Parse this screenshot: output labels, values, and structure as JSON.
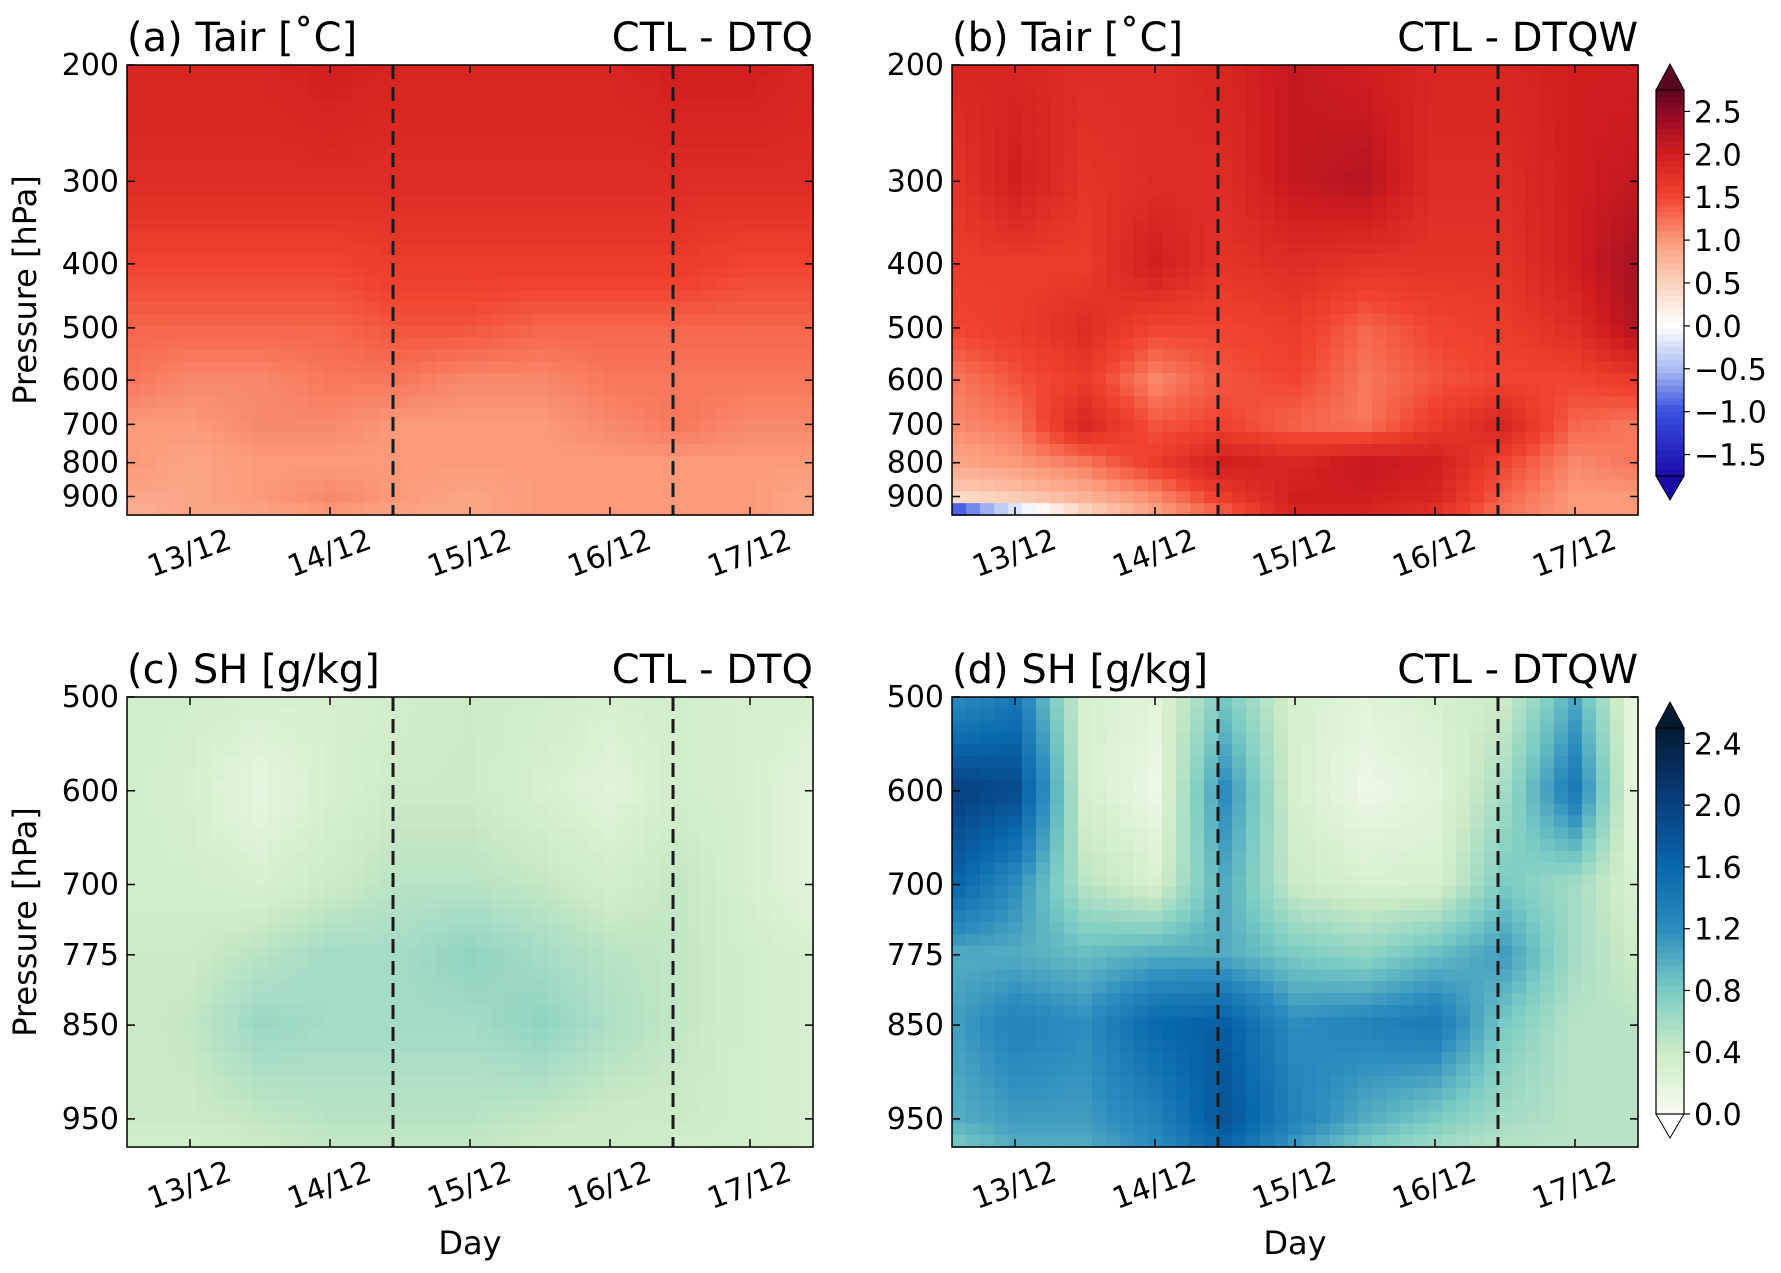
{
  "figure": {
    "xlabel": "Day"
  },
  "colorbars": {
    "temperature": {
      "ticks": [
        "2.5",
        "2.0",
        "1.5",
        "1.0",
        "0.5",
        "0.0",
        "−0.5",
        "−1.0",
        "−1.5"
      ],
      "vmin": -1.75,
      "vmax": 2.75,
      "stops": [
        {
          "v": -1.75,
          "color": "#1b0ca8"
        },
        {
          "v": -1.0,
          "color": "#3a4fe0"
        },
        {
          "v": -0.5,
          "color": "#a9bdf3"
        },
        {
          "v": 0.0,
          "color": "#ffffff"
        },
        {
          "v": 0.5,
          "color": "#fcd3bd"
        },
        {
          "v": 1.0,
          "color": "#fb9a7a"
        },
        {
          "v": 1.5,
          "color": "#f1432f"
        },
        {
          "v": 2.0,
          "color": "#d21d1f"
        },
        {
          "v": 2.5,
          "color": "#8e0a26"
        },
        {
          "v": 2.75,
          "color": "#5b0520"
        }
      ]
    },
    "humidity": {
      "ticks": [
        "2.4",
        "2.0",
        "1.6",
        "1.2",
        "0.8",
        "0.4",
        "0.0"
      ],
      "vmin": 0.0,
      "vmax": 2.5,
      "stops": [
        {
          "v": 0.0,
          "color": "#f7fcf0"
        },
        {
          "v": 0.4,
          "color": "#ccebc5"
        },
        {
          "v": 0.8,
          "color": "#7bccc4"
        },
        {
          "v": 1.2,
          "color": "#2b8cbe"
        },
        {
          "v": 1.6,
          "color": "#0868ac"
        },
        {
          "v": 2.0,
          "color": "#084081"
        },
        {
          "v": 2.5,
          "color": "#041a33"
        }
      ]
    }
  },
  "chart_data": [
    {
      "type": "heatmap",
      "panel_label": "(a) Tair [$^\\circ$C]",
      "title": "(a) Tair [˚C]",
      "experiment": "CTL - DTQ",
      "ylabel": "Pressure [hPa]",
      "xlabel": "",
      "x_tick_labels": [
        "13/12",
        "14/12",
        "15/12",
        "16/12",
        "17/12"
      ],
      "y_ticks": [
        200,
        300,
        400,
        500,
        600,
        700,
        800,
        900
      ],
      "y_range_hPa": [
        200,
        960
      ],
      "x_range_days": [
        12.55,
        17.45
      ],
      "dashed_lines_days": [
        14.45,
        16.45
      ],
      "colorbar": "temperature",
      "levels_hPa": [
        200,
        300,
        400,
        500,
        600,
        700,
        800,
        900,
        960
      ],
      "days": [
        12.6,
        13.0,
        13.5,
        14.0,
        14.5,
        15.0,
        15.5,
        16.0,
        16.5,
        17.0,
        17.4
      ],
      "values": [
        [
          1.9,
          1.9,
          1.9,
          2.0,
          1.9,
          1.9,
          1.9,
          1.9,
          2.0,
          2.0,
          1.9
        ],
        [
          1.8,
          1.8,
          1.8,
          1.8,
          1.8,
          1.8,
          1.8,
          1.8,
          1.8,
          1.8,
          1.8
        ],
        [
          1.5,
          1.5,
          1.5,
          1.5,
          1.6,
          1.6,
          1.6,
          1.6,
          1.6,
          1.5,
          1.5
        ],
        [
          1.3,
          1.3,
          1.3,
          1.3,
          1.4,
          1.4,
          1.3,
          1.3,
          1.3,
          1.3,
          1.3
        ],
        [
          1.2,
          1.1,
          1.1,
          1.2,
          1.2,
          1.1,
          1.1,
          1.2,
          1.2,
          1.2,
          1.2
        ],
        [
          1.0,
          1.0,
          1.1,
          1.1,
          1.0,
          1.0,
          1.0,
          1.1,
          1.2,
          1.1,
          1.1
        ],
        [
          1.0,
          0.9,
          1.0,
          1.0,
          1.0,
          1.0,
          1.0,
          1.0,
          1.0,
          1.0,
          1.0
        ],
        [
          0.9,
          0.9,
          1.0,
          1.1,
          1.0,
          0.9,
          1.0,
          1.0,
          1.0,
          1.0,
          0.9
        ],
        [
          0.8,
          0.9,
          0.9,
          1.0,
          0.9,
          0.9,
          1.0,
          1.0,
          1.0,
          1.0,
          0.9
        ]
      ]
    },
    {
      "type": "heatmap",
      "title": "(b) Tair [˚C]",
      "experiment": "CTL - DTQW",
      "ylabel": "",
      "xlabel": "",
      "x_tick_labels": [
        "13/12",
        "14/12",
        "15/12",
        "16/12",
        "17/12"
      ],
      "y_ticks": [
        200,
        300,
        400,
        500,
        600,
        700,
        800,
        900
      ],
      "y_range_hPa": [
        200,
        960
      ],
      "x_range_days": [
        12.55,
        17.45
      ],
      "dashed_lines_days": [
        14.45,
        16.45
      ],
      "colorbar": "temperature",
      "levels_hPa": [
        200,
        300,
        400,
        500,
        600,
        700,
        800,
        900,
        960
      ],
      "days": [
        12.6,
        13.0,
        13.5,
        14.0,
        14.5,
        15.0,
        15.5,
        16.0,
        16.5,
        17.0,
        17.4
      ],
      "values": [
        [
          1.9,
          1.9,
          1.8,
          1.8,
          1.9,
          2.1,
          2.0,
          1.9,
          1.9,
          2.0,
          2.0
        ],
        [
          1.7,
          2.0,
          1.7,
          1.8,
          1.8,
          2.1,
          2.2,
          1.8,
          1.8,
          2.0,
          2.1
        ],
        [
          1.6,
          1.6,
          1.6,
          2.0,
          1.7,
          1.8,
          1.7,
          1.7,
          1.7,
          2.0,
          2.3
        ],
        [
          1.5,
          1.6,
          1.8,
          1.5,
          1.5,
          1.6,
          1.3,
          1.5,
          1.6,
          1.8,
          2.2
        ],
        [
          1.2,
          1.4,
          1.6,
          1.1,
          1.4,
          1.5,
          1.2,
          1.4,
          1.5,
          1.5,
          1.6
        ],
        [
          1.1,
          1.2,
          1.9,
          1.4,
          1.5,
          1.3,
          1.2,
          1.6,
          1.9,
          1.3,
          1.2
        ],
        [
          0.9,
          1.0,
          1.2,
          1.6,
          2.0,
          1.9,
          2.1,
          2.0,
          1.5,
          1.1,
          1.2
        ],
        [
          0.5,
          0.6,
          0.8,
          1.1,
          1.6,
          2.0,
          2.0,
          1.9,
          1.3,
          1.0,
          1.0
        ],
        [
          -1.6,
          -0.6,
          0.4,
          0.9,
          1.3,
          1.9,
          1.9,
          1.7,
          1.2,
          1.0,
          1.0
        ]
      ]
    },
    {
      "type": "heatmap",
      "title": "(c) SH [g/kg]",
      "experiment": "CTL - DTQ",
      "ylabel": "Pressure [hPa]",
      "xlabel": "Day",
      "x_tick_labels": [
        "13/12",
        "14/12",
        "15/12",
        "16/12",
        "17/12"
      ],
      "y_ticks": [
        500,
        600,
        700,
        775,
        850,
        950
      ],
      "y_range_hPa": [
        500,
        980
      ],
      "x_range_days": [
        12.55,
        17.45
      ],
      "dashed_lines_days": [
        14.45,
        16.45
      ],
      "colorbar": "humidity",
      "levels_hPa": [
        500,
        600,
        700,
        775,
        850,
        950,
        980
      ],
      "days": [
        12.6,
        13.0,
        13.5,
        14.0,
        14.5,
        15.0,
        15.5,
        16.0,
        16.5,
        17.0,
        17.4
      ],
      "values": [
        [
          0.35,
          0.35,
          0.3,
          0.3,
          0.35,
          0.4,
          0.35,
          0.3,
          0.35,
          0.3,
          0.3
        ],
        [
          0.35,
          0.3,
          0.15,
          0.3,
          0.4,
          0.4,
          0.3,
          0.2,
          0.35,
          0.3,
          0.2
        ],
        [
          0.35,
          0.35,
          0.3,
          0.4,
          0.5,
          0.5,
          0.45,
          0.35,
          0.45,
          0.3,
          0.2
        ],
        [
          0.4,
          0.4,
          0.5,
          0.6,
          0.6,
          0.7,
          0.6,
          0.5,
          0.45,
          0.35,
          0.3
        ],
        [
          0.4,
          0.45,
          0.65,
          0.6,
          0.6,
          0.6,
          0.7,
          0.55,
          0.45,
          0.35,
          0.3
        ],
        [
          0.4,
          0.4,
          0.45,
          0.5,
          0.5,
          0.5,
          0.45,
          0.4,
          0.4,
          0.35,
          0.3
        ],
        [
          0.35,
          0.35,
          0.4,
          0.45,
          0.45,
          0.45,
          0.4,
          0.4,
          0.35,
          0.35,
          0.3
        ]
      ]
    },
    {
      "type": "heatmap",
      "title": "(d) SH [g/kg]",
      "experiment": "CTL - DTQW",
      "ylabel": "",
      "xlabel": "Day",
      "x_tick_labels": [
        "13/12",
        "14/12",
        "15/12",
        "16/12",
        "17/12"
      ],
      "y_ticks": [
        500,
        600,
        700,
        775,
        850,
        950
      ],
      "y_range_hPa": [
        500,
        980
      ],
      "x_range_days": [
        12.55,
        17.45
      ],
      "dashed_lines_days": [
        14.45,
        16.45
      ],
      "colorbar": "humidity",
      "levels_hPa": [
        500,
        600,
        700,
        775,
        850,
        950,
        980
      ],
      "days": [
        12.6,
        13.0,
        13.5,
        14.0,
        14.5,
        15.0,
        15.5,
        16.0,
        16.5,
        17.0,
        17.4
      ],
      "values": [
        [
          1.2,
          1.4,
          0.3,
          0.2,
          0.8,
          0.3,
          0.2,
          0.3,
          0.4,
          1.0,
          0.2
        ],
        [
          2.0,
          1.9,
          0.3,
          0.1,
          1.2,
          0.3,
          0.1,
          0.2,
          0.6,
          1.4,
          0.2
        ],
        [
          1.6,
          1.2,
          0.5,
          0.3,
          1.0,
          0.4,
          0.3,
          0.3,
          0.8,
          0.6,
          0.3
        ],
        [
          1.0,
          1.0,
          0.9,
          1.0,
          1.0,
          0.8,
          0.7,
          0.9,
          1.1,
          0.6,
          0.4
        ],
        [
          1.1,
          1.3,
          1.2,
          1.6,
          1.7,
          1.2,
          1.3,
          1.4,
          0.8,
          0.5,
          0.5
        ],
        [
          1.0,
          1.1,
          1.1,
          1.3,
          1.8,
          1.3,
          1.0,
          0.8,
          0.6,
          0.5,
          0.5
        ],
        [
          0.8,
          1.0,
          1.0,
          1.2,
          1.6,
          1.1,
          0.8,
          0.6,
          0.5,
          0.5,
          0.5
        ]
      ]
    }
  ]
}
